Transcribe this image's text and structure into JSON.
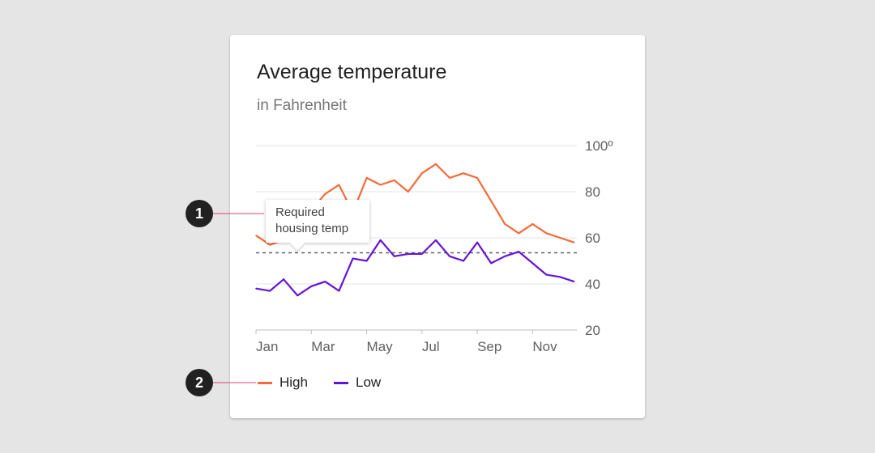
{
  "card": {
    "title": "Average temperature",
    "subtitle": "in Fahrenheit"
  },
  "tooltip": {
    "line1": "Required",
    "line2": "housing temp"
  },
  "callouts": [
    "1",
    "2"
  ],
  "colors": {
    "high": "#f26b3a",
    "low": "#6414d6",
    "callout_line": "#e2407a",
    "reference_line": "#616161",
    "grid": "#e6e6e6",
    "axis_text": "#616161"
  },
  "chart_data": {
    "type": "line",
    "title": "Average temperature",
    "subtitle": "in Fahrenheit",
    "x": [
      0,
      0.5,
      1,
      1.5,
      2,
      2.5,
      3,
      3.5,
      4,
      4.5,
      5,
      5.5,
      6,
      6.5,
      7,
      7.5,
      8,
      8.5,
      9,
      9.5,
      10,
      10.5,
      11,
      11.5
    ],
    "xticks": [
      {
        "value": 0,
        "label": "Jan"
      },
      {
        "value": 2,
        "label": "Mar"
      },
      {
        "value": 4,
        "label": "May"
      },
      {
        "value": 6,
        "label": "Jul"
      },
      {
        "value": 8,
        "label": "Sep"
      },
      {
        "value": 10,
        "label": "Nov"
      }
    ],
    "xlim": [
      0,
      11.6
    ],
    "yticks": [
      {
        "value": 20,
        "label": "20"
      },
      {
        "value": 40,
        "label": "40"
      },
      {
        "value": 60,
        "label": "60"
      },
      {
        "value": 80,
        "label": "80"
      },
      {
        "value": 100,
        "label": "100º"
      }
    ],
    "ylim": [
      20,
      100
    ],
    "grid": true,
    "legend_position": "bottom-left",
    "series": [
      {
        "name": "High",
        "color": "#f26b3a",
        "values": [
          61,
          57,
          59,
          66,
          72,
          79,
          83,
          71,
          86,
          83,
          85,
          80,
          88,
          92,
          86,
          88,
          86,
          76,
          66,
          62,
          66,
          62,
          60,
          58
        ]
      },
      {
        "name": "Low",
        "color": "#6414d6",
        "values": [
          38,
          37,
          42,
          35,
          39,
          41,
          37,
          51,
          50,
          59,
          52,
          53,
          53,
          59,
          52,
          50,
          58,
          49,
          52,
          54,
          49,
          44,
          43,
          41
        ]
      }
    ],
    "reference_line": {
      "value": 53.5,
      "label": "Required housing temp",
      "style": "dashed"
    }
  }
}
